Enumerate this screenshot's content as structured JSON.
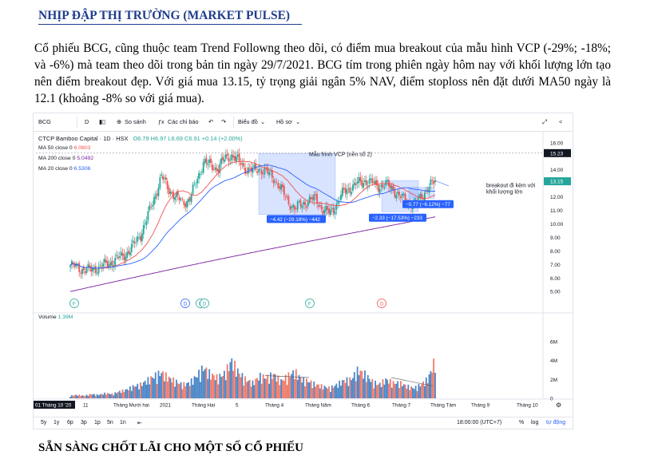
{
  "doc": {
    "heading": "NHỊP ĐẬP THỊ TRƯỜNG (MARKET PULSE)",
    "paragraph": "Cổ phiếu BCG, cũng thuộc team Trend Followng theo dõi, có điểm mua breakout của mẫu hình VCP (-29%; -18%; và -6%)  mà team theo dõi trong bản tin ngày 29/7/2021. BCG tím trong phiên ngày hôm nay với khối lượng lớn tạo nên điểm breakout đẹp. Với giá mua 13.15, tỷ trọng giải ngân 5% NAV, điểm stoploss nên đặt dưới MA50 ngày là 12.1 (khoảng -8% so với giá mua).",
    "next_heading": "SẴN SÀNG CHỐT LÃI CHO MỘT SỐ CỔ PHIẾU"
  },
  "toolbar": {
    "symbol": "BCG",
    "interval": "D",
    "compare": "So sánh",
    "indicators": "Các chỉ báo",
    "chart_type": "Biểu đồ",
    "profile": "Hồ sơ",
    "colors": {
      "up": "#26a69a",
      "down": "#ef5350",
      "ma50": "#ef5350",
      "ma200": "#7b1fa2",
      "ma20": "#2962ff",
      "accent": "#2962ff"
    }
  },
  "legend": {
    "title": "CTCP Bamboo Capital · 1D · HSX",
    "ohlc": "O6.79 H6.97 L6.69 C6.91 +0.14 (+2.00%)",
    "ma50_label": "MA 50 close 0",
    "ma50_value": "6.0803",
    "ma200_label": "MA 200 close 0",
    "ma200_value": "5.0492",
    "ma20_label": "MA 20 close 0",
    "ma20_value": "6.5306",
    "volume_label": "Volume",
    "volume_value": "1.39M"
  },
  "annotations": {
    "vcp": "Mẫu hình VCP (nền số 2)",
    "breakout": "breakout đi kèm với khối lượng lớn",
    "drop1": "−4.42 (−29.18%) −442",
    "drop2": "−2.33 (−17.53%) −233",
    "drop3": "−0.77 (−6.12%) −77",
    "last_price": "15.23",
    "current_price": "13.15",
    "event_labels": [
      "F",
      "D",
      "D",
      "D",
      "F",
      "D"
    ]
  },
  "chart_data": {
    "type": "candlestick",
    "price_axis": {
      "ticks": [
        "16.00",
        "15.23",
        "14.00",
        "13.15",
        "12.00",
        "11.00",
        "10.00",
        "9.00",
        "8.00",
        "7.00",
        "6.00",
        "5.00"
      ],
      "range": [
        4.6,
        16.4
      ]
    },
    "volume_axis": {
      "ticks": [
        "6M",
        "4M",
        "2M",
        "0"
      ],
      "range": [
        0,
        6.5
      ]
    },
    "x_ticks": [
      "01 Tháng 10 '20",
      "11",
      "Tháng Mười hai",
      "2021",
      "Tháng Hai",
      "5",
      "Tháng 4",
      "Tháng Năm",
      "Tháng 6",
      "Tháng 7",
      "Tháng Tám",
      "Tháng 9",
      "Tháng 10"
    ],
    "close_path": [
      6.9,
      6.8,
      6.6,
      6.6,
      6.8,
      7.0,
      7.2,
      7.5,
      7.8,
      8.4,
      9.2,
      10.5,
      12.0,
      13.5,
      12.6,
      12.0,
      11.6,
      11.8,
      13.2,
      14.6,
      14.3,
      14.1,
      14.8,
      15.1,
      14.6,
      14.1,
      13.9,
      14.1,
      13.8,
      13.4,
      12.6,
      11.7,
      11.1,
      11.5,
      11.7,
      11.9,
      11.0,
      10.8,
      11.5,
      12.4,
      12.7,
      13.0,
      13.2,
      13.0,
      12.8,
      12.9,
      12.6,
      12.0,
      11.7,
      11.5,
      12.0,
      12.7,
      13.15
    ],
    "volume_path": [
      0.3,
      0.4,
      0.3,
      0.5,
      0.4,
      0.6,
      0.5,
      0.8,
      1.0,
      1.4,
      1.6,
      2.1,
      2.6,
      3.0,
      2.4,
      2.0,
      1.6,
      1.8,
      2.6,
      3.6,
      2.8,
      2.4,
      2.9,
      4.4,
      3.0,
      2.2,
      1.8,
      2.6,
      2.4,
      2.8,
      2.0,
      2.6,
      3.1,
      2.2,
      2.0,
      1.6,
      1.4,
      1.2,
      1.6,
      2.1,
      2.2,
      3.3,
      2.8,
      2.0,
      1.6,
      2.2,
      1.8,
      1.8,
      1.4,
      1.2,
      1.6,
      2.3,
      4.5
    ]
  },
  "footer": {
    "ranges": [
      "5y",
      "1y",
      "6p",
      "3p",
      "1p",
      "5n",
      "1n"
    ],
    "time": "18:00:00 (UTC+7)",
    "percent": "%",
    "log": "log",
    "auto": "tự động"
  }
}
